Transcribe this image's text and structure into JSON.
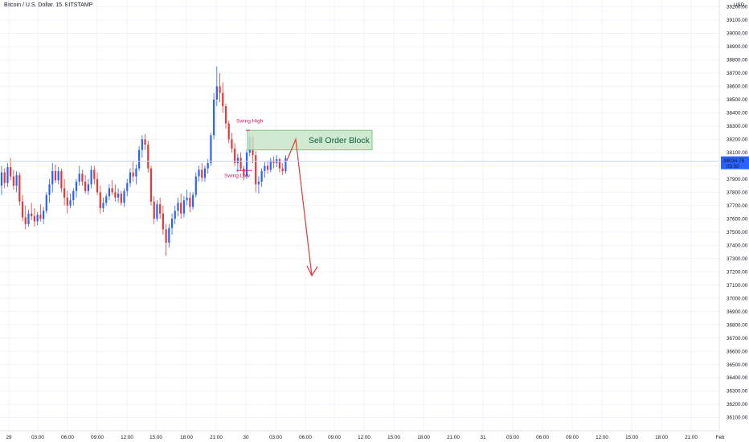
{
  "header": {
    "symbol_title": "Bitcoin / U.S. Dollar, 15, BITSTAMP",
    "currency": "USD"
  },
  "price_tag": {
    "price": "38034.75",
    "countdown": "03:50",
    "color": "#2962ff"
  },
  "colors": {
    "up": "#2962ff",
    "down": "#e53935",
    "annotation": "#d81b60",
    "order_block_fill": "#c8e6c9",
    "order_block_border": "#66bb6a",
    "arrow": "#e53935",
    "grid": "#f0f3fa"
  },
  "chart_data": {
    "type": "candlestick",
    "symbol": "Bitcoin / U.S. Dollar",
    "interval": "15",
    "exchange": "BITSTAMP",
    "currency": "USD",
    "ylim": [
      36000,
      39250
    ],
    "y_ticks": [
      "39200.00",
      "39100.00",
      "39000.00",
      "38900.00",
      "38800.00",
      "38700.00",
      "38600.00",
      "38500.00",
      "38400.00",
      "38300.00",
      "38200.00",
      "38100.00",
      "38000.00",
      "37900.00",
      "37800.00",
      "37700.00",
      "37600.00",
      "37500.00",
      "37400.00",
      "37300.00",
      "37200.00",
      "37100.00",
      "37000.00",
      "36900.00",
      "36800.00",
      "36700.00",
      "36600.00",
      "36500.00",
      "36400.00",
      "36300.00",
      "36200.00",
      "36100.00"
    ],
    "x_ticks": [
      "29",
      "03:00",
      "06:00",
      "09:00",
      "12:00",
      "15:00",
      "18:00",
      "21:00",
      "30",
      "03:00",
      "06:00",
      "09:00",
      "12:00",
      "15:00",
      "18:00",
      "21:00",
      "31",
      "03:00",
      "06:00",
      "09:00",
      "12:00",
      "15:00",
      "18:00",
      "21:00",
      "Feb"
    ],
    "last_price": 38034.75,
    "candles": [
      [
        37850,
        38000,
        37780,
        37950
      ],
      [
        37950,
        37980,
        37830,
        37870
      ],
      [
        37870,
        38020,
        37840,
        37990
      ],
      [
        37990,
        38060,
        37890,
        37920
      ],
      [
        37920,
        37970,
        37820,
        37850
      ],
      [
        37850,
        37960,
        37800,
        37930
      ],
      [
        37930,
        37950,
        37700,
        37730
      ],
      [
        37730,
        37780,
        37580,
        37610
      ],
      [
        37610,
        37700,
        37520,
        37560
      ],
      [
        37560,
        37670,
        37540,
        37640
      ],
      [
        37640,
        37720,
        37590,
        37620
      ],
      [
        37620,
        37680,
        37540,
        37580
      ],
      [
        37580,
        37650,
        37550,
        37630
      ],
      [
        37630,
        37710,
        37580,
        37600
      ],
      [
        37600,
        37690,
        37560,
        37660
      ],
      [
        37660,
        37800,
        37640,
        37780
      ],
      [
        37780,
        37900,
        37720,
        37860
      ],
      [
        37860,
        38020,
        37800,
        37960
      ],
      [
        37960,
        38010,
        37870,
        37890
      ],
      [
        37890,
        37990,
        37860,
        37960
      ],
      [
        37960,
        37980,
        37800,
        37830
      ],
      [
        37830,
        37900,
        37700,
        37760
      ],
      [
        37760,
        37810,
        37640,
        37700
      ],
      [
        37700,
        37790,
        37680,
        37740
      ],
      [
        37740,
        37830,
        37700,
        37810
      ],
      [
        37810,
        37900,
        37760,
        37880
      ],
      [
        37880,
        38000,
        37850,
        37940
      ],
      [
        37940,
        37970,
        37850,
        37880
      ],
      [
        37880,
        37930,
        37790,
        37810
      ],
      [
        37810,
        37900,
        37780,
        37860
      ],
      [
        37860,
        38000,
        37830,
        37970
      ],
      [
        37970,
        38000,
        37860,
        37900
      ],
      [
        37900,
        37950,
        37780,
        37800
      ],
      [
        37800,
        37850,
        37640,
        37680
      ],
      [
        37680,
        37760,
        37650,
        37720
      ],
      [
        37720,
        37790,
        37700,
        37770
      ],
      [
        37770,
        37860,
        37740,
        37830
      ],
      [
        37830,
        37890,
        37780,
        37800
      ],
      [
        37800,
        37860,
        37730,
        37760
      ],
      [
        37760,
        37830,
        37720,
        37790
      ],
      [
        37790,
        37810,
        37700,
        37720
      ],
      [
        37720,
        37830,
        37690,
        37810
      ],
      [
        37810,
        37900,
        37770,
        37870
      ],
      [
        37870,
        37980,
        37840,
        37950
      ],
      [
        37950,
        38040,
        37880,
        37920
      ],
      [
        37920,
        38010,
        37860,
        37980
      ],
      [
        37980,
        38150,
        37960,
        38120
      ],
      [
        38120,
        38230,
        38060,
        38200
      ],
      [
        38200,
        38240,
        38120,
        38160
      ],
      [
        38160,
        38190,
        37950,
        37980
      ],
      [
        37980,
        38000,
        37700,
        37730
      ],
      [
        37730,
        37770,
        37560,
        37600
      ],
      [
        37600,
        37740,
        37580,
        37710
      ],
      [
        37710,
        37760,
        37600,
        37640
      ],
      [
        37640,
        37700,
        37480,
        37520
      ],
      [
        37520,
        37560,
        37320,
        37420
      ],
      [
        37420,
        37560,
        37380,
        37530
      ],
      [
        37530,
        37640,
        37480,
        37600
      ],
      [
        37600,
        37700,
        37560,
        37660
      ],
      [
        37660,
        37760,
        37620,
        37720
      ],
      [
        37720,
        37790,
        37600,
        37640
      ],
      [
        37640,
        37770,
        37610,
        37740
      ],
      [
        37740,
        37820,
        37700,
        37760
      ],
      [
        37760,
        37800,
        37650,
        37690
      ],
      [
        37690,
        37800,
        37670,
        37780
      ],
      [
        37780,
        37950,
        37760,
        37920
      ],
      [
        37920,
        38000,
        37880,
        37970
      ],
      [
        37970,
        38020,
        37880,
        37910
      ],
      [
        37910,
        38000,
        37880,
        37980
      ],
      [
        37980,
        38050,
        37940,
        38020
      ],
      [
        38020,
        38250,
        38000,
        38230
      ],
      [
        38230,
        38550,
        38200,
        38500
      ],
      [
        38500,
        38750,
        38450,
        38600
      ],
      [
        38600,
        38700,
        38480,
        38550
      ],
      [
        38550,
        38630,
        38400,
        38450
      ],
      [
        38450,
        38470,
        38280,
        38320
      ],
      [
        38320,
        38340,
        38170,
        38200
      ],
      [
        38200,
        38250,
        38100,
        38130
      ],
      [
        38130,
        38170,
        38000,
        38020
      ],
      [
        38020,
        38090,
        37950,
        38060
      ],
      [
        38060,
        38100,
        37960,
        37980
      ],
      [
        37980,
        38000,
        37890,
        37920
      ],
      [
        37920,
        38120,
        37900,
        38100
      ],
      [
        38100,
        38230,
        38070,
        38220
      ],
      [
        38220,
        38240,
        38020,
        38080
      ],
      [
        38080,
        38110,
        37800,
        37860
      ],
      [
        37860,
        37920,
        37790,
        37880
      ],
      [
        37880,
        37980,
        37840,
        37960
      ],
      [
        37960,
        38030,
        37910,
        38000
      ],
      [
        38000,
        38040,
        37940,
        37970
      ],
      [
        37970,
        38060,
        37950,
        38040
      ],
      [
        38040,
        38070,
        37980,
        38020
      ],
      [
        38020,
        38080,
        37990,
        38050
      ],
      [
        38050,
        38060,
        37950,
        37980
      ],
      [
        37980,
        38020,
        37930,
        37960
      ],
      [
        37960,
        38080,
        37940,
        38060
      ]
    ]
  },
  "annotations": {
    "swing_high": "Swing High",
    "swing_low": "Swing Low",
    "order_block": "Sell Order Block"
  }
}
